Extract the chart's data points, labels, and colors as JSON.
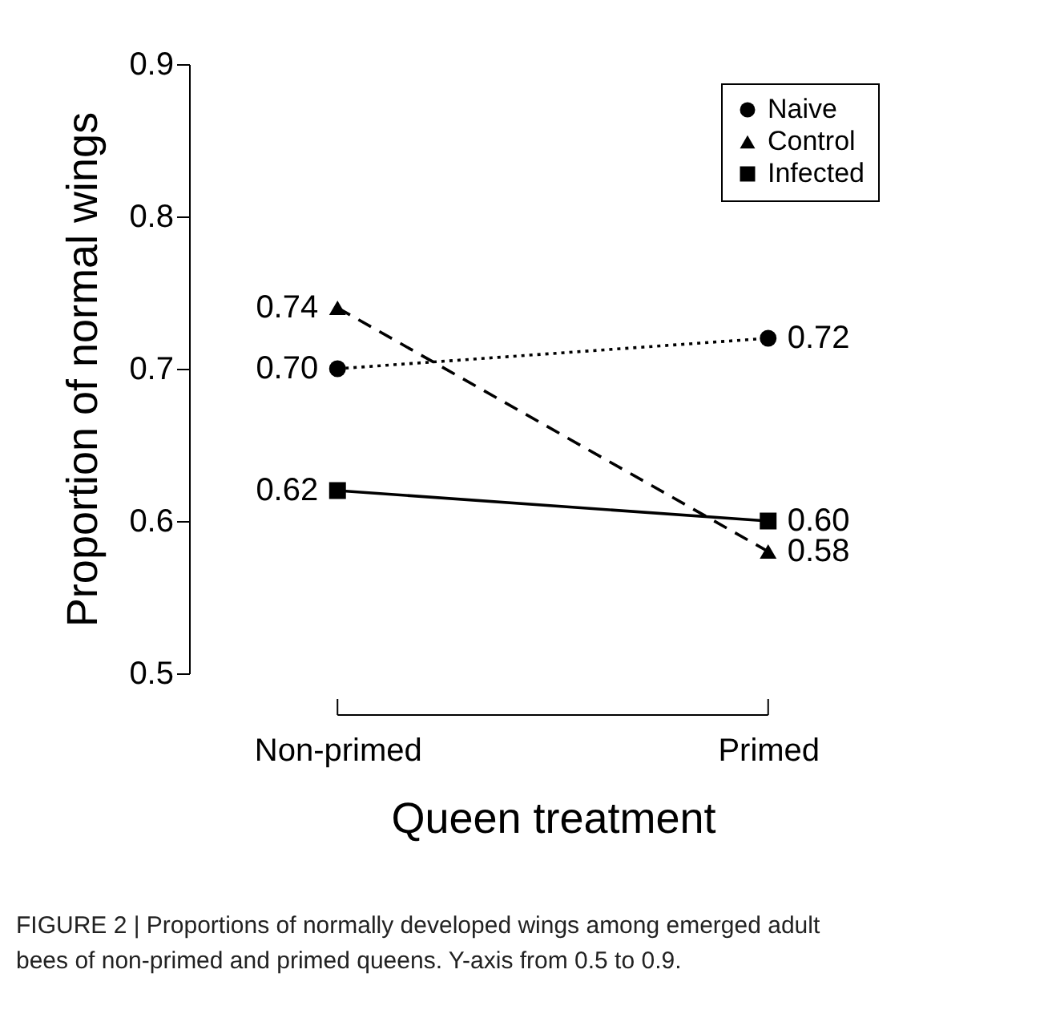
{
  "chart_data": {
    "type": "line",
    "xlabel": "Queen treatment",
    "ylabel": "Proportion of normal wings",
    "categories": [
      "Non-primed",
      "Primed"
    ],
    "series": [
      {
        "name": "Naive",
        "color": "#000000",
        "values": [
          0.7,
          0.72
        ],
        "value_labels": [
          "0.70",
          "0.72"
        ],
        "line_style": "dotted",
        "marker": "circle"
      },
      {
        "name": "Control",
        "color": "#000000",
        "values": [
          0.74,
          0.58
        ],
        "value_labels": [
          "0.74",
          "0.58"
        ],
        "line_style": "dashed",
        "marker": "triangle"
      },
      {
        "name": "Infected",
        "color": "#000000",
        "values": [
          0.62,
          0.6
        ],
        "value_labels": [
          "0.62",
          "0.60"
        ],
        "line_style": "solid",
        "marker": "square"
      }
    ],
    "ylim": [
      0.5,
      0.9
    ],
    "yticks": [
      0.5,
      0.6,
      0.7,
      0.8,
      0.9
    ],
    "grid": false,
    "legend": "top right",
    "annotations": [
      "FIGURE 2 | Proportions of normally developed wings among emerged adult bees of non-primed and primed queens. Y-axis from 0.5 to 0.9."
    ]
  }
}
